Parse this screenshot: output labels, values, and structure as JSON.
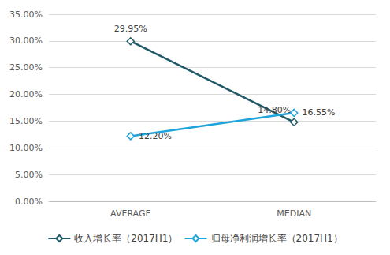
{
  "chart_data": {
    "type": "line",
    "categories": [
      "AVERAGE",
      "MEDIAN"
    ],
    "series": [
      {
        "name": "收入增长率（2017H1）",
        "color": "#215968",
        "values": [
          29.95,
          14.8
        ],
        "value_labels": [
          "29.95%",
          "14.80%"
        ],
        "marker": "diamond",
        "line_style": "solid"
      },
      {
        "name": "归母净利润增长率（2017H1）",
        "color": "#1ea3dc",
        "values": [
          12.2,
          16.55
        ],
        "value_labels": [
          "12.20%",
          "16.55%"
        ],
        "marker": "diamond",
        "line_style": "solid"
      }
    ],
    "ylim": [
      0,
      35
    ],
    "yticks": [
      {
        "value": 0,
        "label": "0.00%"
      },
      {
        "value": 5,
        "label": "5.00%"
      },
      {
        "value": 10,
        "label": "10.00%"
      },
      {
        "value": 15,
        "label": "15.00%"
      },
      {
        "value": 20,
        "label": "20.00%"
      },
      {
        "value": 25,
        "label": "25.00%"
      },
      {
        "value": 30,
        "label": "30.00%"
      },
      {
        "value": 35,
        "label": "35.00%"
      }
    ],
    "grid": true,
    "legend": "bottom",
    "data_labels": true
  }
}
